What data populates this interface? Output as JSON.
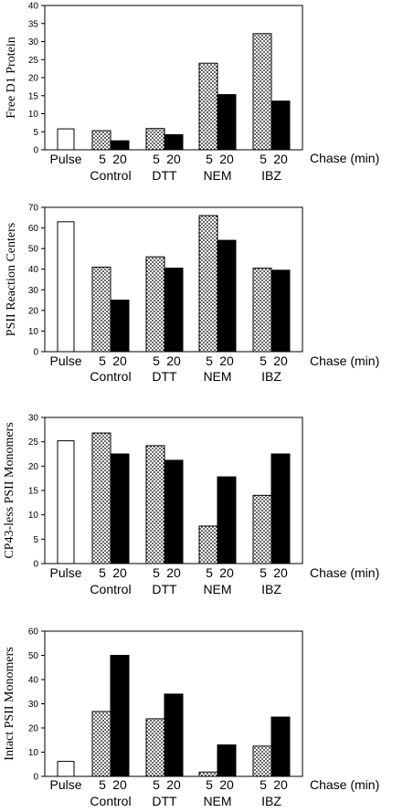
{
  "chart_data": [
    {
      "type": "bar",
      "ylabel": "Free D1 Protein",
      "ylim": [
        0,
        40
      ],
      "yticks": [
        0,
        5,
        10,
        15,
        20,
        25,
        30,
        35,
        40
      ],
      "chase_label": "Chase (min)",
      "group_labels": [
        "Pulse",
        "Control",
        "DTT",
        "NEM",
        "IBZ"
      ],
      "time_labels": [
        "5",
        "20"
      ],
      "pulse_label": "Pulse",
      "pulse_value": 5.8,
      "groups": [
        {
          "name": "Control",
          "values": [
            5.3,
            2.5
          ]
        },
        {
          "name": "DTT",
          "values": [
            5.9,
            4.2
          ]
        },
        {
          "name": "NEM",
          "values": [
            24.0,
            15.3
          ]
        },
        {
          "name": "IBZ",
          "values": [
            32.2,
            13.5
          ]
        }
      ]
    },
    {
      "type": "bar",
      "ylabel": "PSII Reaction Centers",
      "ylim": [
        0,
        70
      ],
      "yticks": [
        0,
        10,
        20,
        30,
        40,
        50,
        60,
        70
      ],
      "chase_label": "Chase (min)",
      "group_labels": [
        "Pulse",
        "Control",
        "DTT",
        "NEM",
        "IBZ"
      ],
      "time_labels": [
        "5",
        "20"
      ],
      "pulse_label": "Pulse",
      "pulse_value": 63,
      "groups": [
        {
          "name": "Control",
          "values": [
            41,
            25
          ]
        },
        {
          "name": "DTT",
          "values": [
            46,
            40.5
          ]
        },
        {
          "name": "NEM",
          "values": [
            66,
            54
          ]
        },
        {
          "name": "IBZ",
          "values": [
            40.5,
            39.5
          ]
        }
      ]
    },
    {
      "type": "bar",
      "ylabel": "CP43-less PSII Monomers",
      "ylim": [
        0,
        30
      ],
      "yticks": [
        0,
        5,
        10,
        15,
        20,
        25,
        30
      ],
      "chase_label": "Chase (min)",
      "group_labels": [
        "Pulse",
        "Control",
        "DTT",
        "NEM",
        "IBZ"
      ],
      "time_labels": [
        "5",
        "20"
      ],
      "pulse_label": "Pulse",
      "pulse_value": 25.2,
      "groups": [
        {
          "name": "Control",
          "values": [
            26.8,
            22.5
          ]
        },
        {
          "name": "DTT",
          "values": [
            24.2,
            21.2
          ]
        },
        {
          "name": "NEM",
          "values": [
            7.7,
            17.8
          ]
        },
        {
          "name": "IBZ",
          "values": [
            14.0,
            22.5
          ]
        }
      ]
    },
    {
      "type": "bar",
      "ylabel": "Intact PSII Monomers",
      "ylim": [
        0,
        60
      ],
      "yticks": [
        0,
        10,
        20,
        30,
        40,
        50,
        60
      ],
      "chase_label": "Chase (min)",
      "group_labels": [
        "Pulse",
        "Control",
        "DTT",
        "NEM",
        "IBZ"
      ],
      "time_labels": [
        "5",
        "20"
      ],
      "pulse_label": "Pulse",
      "pulse_value": 6.2,
      "groups": [
        {
          "name": "Control",
          "values": [
            26.8,
            50
          ]
        },
        {
          "name": "DTT",
          "values": [
            23.8,
            34
          ]
        },
        {
          "name": "NEM",
          "values": [
            1.8,
            13
          ]
        },
        {
          "name": "IBZ",
          "values": [
            12.5,
            24.5
          ]
        }
      ]
    }
  ]
}
